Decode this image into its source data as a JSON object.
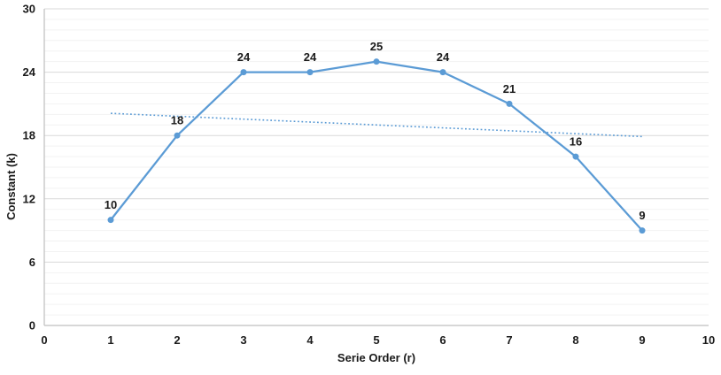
{
  "figure": {
    "background": "#ffffff"
  },
  "chart_data": {
    "type": "line",
    "title": "",
    "xlabel": "Serie Order (r)",
    "ylabel": "Constant (k)",
    "x": [
      1,
      2,
      3,
      4,
      5,
      6,
      7,
      8,
      9
    ],
    "values": [
      10,
      18,
      24,
      24,
      25,
      24,
      21,
      16,
      9
    ],
    "data_labels": [
      "10",
      "18",
      "24",
      "24",
      "25",
      "24",
      "21",
      "16",
      "9"
    ],
    "xlim": [
      0,
      10
    ],
    "ylim": [
      0,
      30
    ],
    "x_ticks": [
      0,
      1,
      2,
      3,
      4,
      5,
      6,
      7,
      8,
      9,
      10
    ],
    "y_ticks": [
      0,
      6,
      12,
      18,
      24,
      30
    ],
    "y_minor_step": 1,
    "grid": "on",
    "legend": "none",
    "series_color": "#5b9bd5",
    "marker": "circle",
    "trendline": {
      "style": "dotted",
      "color": "#5b9bd5",
      "x1": 1,
      "y1": 20.1,
      "x2": 9,
      "y2": 17.9
    },
    "colors": {
      "major_grid": "#d9d9d9",
      "minor_grid": "#f2f2f2",
      "axis_line": "#bfbfbf",
      "text": "#1a1a1a"
    }
  }
}
